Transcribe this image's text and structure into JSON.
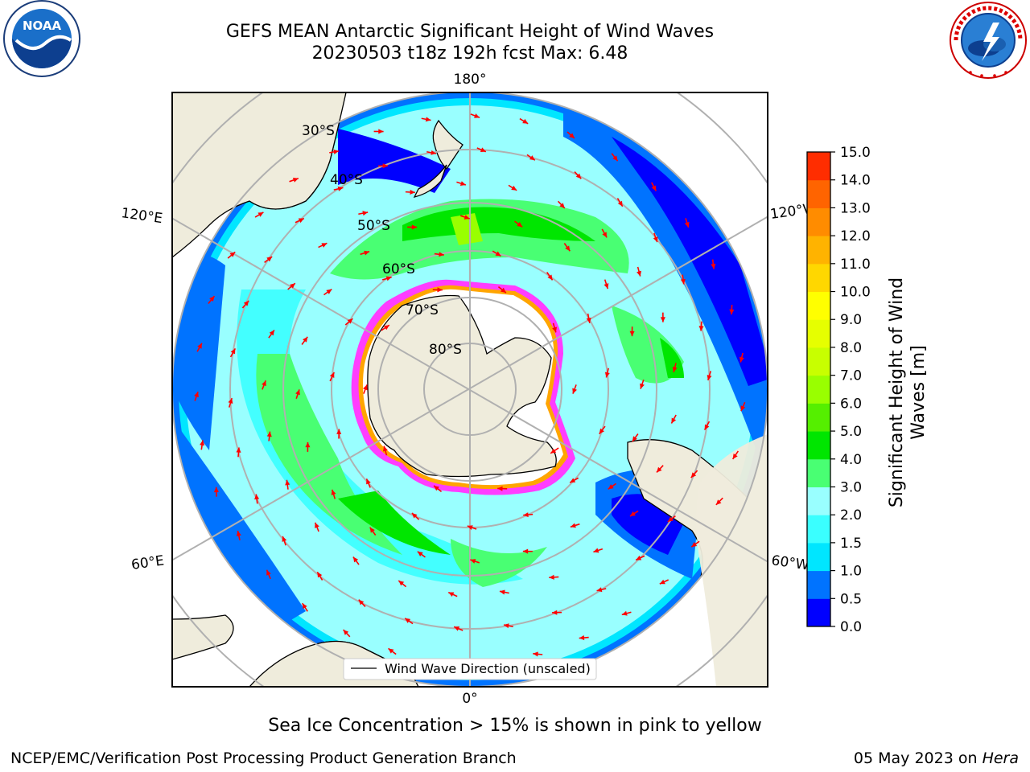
{
  "title": {
    "line1": "GEFS MEAN Antarctic Significant Height of Wind Waves",
    "line2": "20230503 t18z 192h fcst   Max: 6.48"
  },
  "logos": {
    "left": {
      "name": "NOAA",
      "text": "NOAA"
    },
    "right": {
      "name": "National Weather Service"
    }
  },
  "map": {
    "projection": "south-polar-stereographic",
    "ocean_color": "#a6ffff",
    "land_color": "#efecdc",
    "ice_colors": [
      "#ff3dff",
      "#ffa500",
      "#ffff00"
    ],
    "longitude_labels": {
      "top": "180°",
      "bottom": "0°",
      "upper_left": "120°E",
      "upper_right": "120°W",
      "lower_left": "60°E",
      "lower_right": "60°W"
    },
    "latitude_labels": [
      "30°S",
      "40°S",
      "50°S",
      "60°S",
      "70°S",
      "80°S"
    ],
    "legend": "Wind Wave Direction (unscaled)",
    "arrow_color": "#ff0000"
  },
  "colorbar": {
    "label": "Significant Height of Wind Waves [m]",
    "label_line1": "Significant Height of Wind",
    "label_line2": "Waves [m]",
    "ticks": [
      "0.0",
      "0.5",
      "1.0",
      "1.5",
      "2.0",
      "3.0",
      "4.0",
      "5.0",
      "6.0",
      "7.0",
      "8.0",
      "9.0",
      "10.0",
      "11.0",
      "12.0",
      "13.0",
      "14.0",
      "15.0"
    ],
    "colors": [
      "#0000ff",
      "#0073ff",
      "#00e6ff",
      "#3affff",
      "#99ffff",
      "#49ff73",
      "#00e600",
      "#55ef00",
      "#99ff00",
      "#c8ff00",
      "#e6ff00",
      "#ffff00",
      "#ffd700",
      "#ffb300",
      "#ff8c00",
      "#ff6400",
      "#ff2d00"
    ]
  },
  "note": "Sea Ice Concentration > 15% is shown in pink to yellow",
  "footer": {
    "left": "NCEP/EMC/Verification Post Processing Product Generation Branch",
    "right_date": "05 May 2023 on ",
    "right_system": "Hera"
  }
}
